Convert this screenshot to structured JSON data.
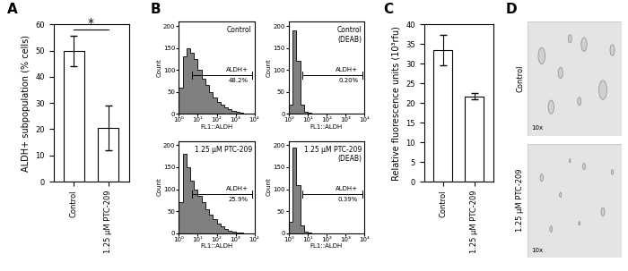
{
  "chart_data": [
    {
      "type": "bar",
      "panel_label": "A",
      "ylabel": "ALDH+ subpopulation (% cells)",
      "categories": [
        "Control",
        "1.25 µM PTC-209"
      ],
      "values": [
        49.8,
        20.4
      ],
      "errors": [
        5.8,
        8.6
      ],
      "color": "#ffffff",
      "ylim": [
        0,
        60
      ],
      "yticks": [
        0,
        10,
        20,
        30,
        40,
        50,
        60
      ],
      "significance": {
        "label": "*",
        "between": [
          0,
          1
        ]
      }
    },
    {
      "type": "histogram",
      "panel_label": "B",
      "title": "Control",
      "xlabel": "FL1::ALDH",
      "ylabel": "Count",
      "log": "x",
      "color": "#808080",
      "bins": [
        1,
        1.585,
        2.512,
        3.981,
        6.31,
        10,
        15.85,
        25.12,
        39.81,
        63.1,
        100,
        158.5,
        251.2,
        398.1,
        631,
        1000,
        1585,
        2512,
        3981,
        6310,
        10000
      ],
      "counts": [
        60,
        130,
        150,
        140,
        125,
        100,
        80,
        65,
        50,
        38,
        28,
        20,
        14,
        10,
        6,
        4,
        2,
        1,
        0,
        0
      ],
      "xlim": [
        1,
        10000
      ],
      "xticks": [
        {
          "value": 1,
          "label": "10⁰"
        },
        {
          "value": 10,
          "label": "10¹"
        },
        {
          "value": 100,
          "label": "10²"
        },
        {
          "value": 1000,
          "label": "10³"
        },
        {
          "value": 10000,
          "label": "10⁴"
        }
      ],
      "ylim": [
        0,
        210
      ],
      "yticks": [
        0,
        50,
        100,
        150,
        200
      ],
      "gate": {
        "label": "ALDH+",
        "range": [
          5,
          8000
        ],
        "value": 48.2,
        "value_label": "48.2%"
      }
    },
    {
      "type": "histogram",
      "title": "Control\n(DEAB)",
      "xlabel": "FL1::ALDH",
      "ylabel": "Count",
      "log": "x",
      "color": "#808080",
      "bins": [
        1,
        1.585,
        2.512,
        3.981,
        6.31,
        10,
        15.85,
        25.12,
        39.81,
        63.1,
        100,
        158.5,
        251.2,
        398.1,
        631,
        1000,
        1585,
        2512,
        3981,
        6310,
        10000
      ],
      "counts": [
        20,
        190,
        120,
        20,
        5,
        2,
        1,
        0,
        0,
        0,
        0,
        0,
        0,
        0,
        0,
        0,
        0,
        0,
        0,
        0
      ],
      "xlim": [
        1,
        10000
      ],
      "xticks": [
        {
          "value": 1,
          "label": "10⁰"
        },
        {
          "value": 10,
          "label": "10¹"
        },
        {
          "value": 100,
          "label": "10²"
        },
        {
          "value": 1000,
          "label": "10³"
        },
        {
          "value": 10000,
          "label": "10⁴"
        }
      ],
      "ylim": [
        0,
        210
      ],
      "yticks": [
        0,
        50,
        100,
        150,
        200
      ],
      "gate": {
        "label": "ALDH+",
        "range": [
          5,
          8000
        ],
        "value": 0.2,
        "value_label": "0.20%"
      }
    },
    {
      "type": "histogram",
      "title": "1.25 µM PTC-209",
      "xlabel": "FL1::ALDH",
      "ylabel": "Count",
      "log": "x",
      "color": "#808080",
      "bins": [
        1,
        1.585,
        2.512,
        3.981,
        6.31,
        10,
        15.85,
        25.12,
        39.81,
        63.1,
        100,
        158.5,
        251.2,
        398.1,
        631,
        1000,
        1585,
        2512,
        3981,
        6310,
        10000
      ],
      "counts": [
        70,
        180,
        150,
        120,
        100,
        85,
        70,
        55,
        42,
        32,
        22,
        15,
        10,
        6,
        4,
        2,
        1,
        0,
        0,
        0
      ],
      "xlim": [
        1,
        10000
      ],
      "xticks": [
        {
          "value": 1,
          "label": "10⁰"
        },
        {
          "value": 10,
          "label": "10¹"
        },
        {
          "value": 100,
          "label": "10²"
        },
        {
          "value": 1000,
          "label": "10³"
        },
        {
          "value": 10000,
          "label": "10⁴"
        }
      ],
      "ylim": [
        0,
        210
      ],
      "yticks": [
        0,
        50,
        100,
        150,
        200
      ],
      "gate": {
        "label": "ALDH+",
        "range": [
          5,
          8000
        ],
        "value": 25.9,
        "value_label": "25.9%"
      }
    },
    {
      "type": "histogram",
      "title": "1.25 µM PTC-209\n(DEAB)",
      "xlabel": "FL1::ALDH",
      "ylabel": "Count",
      "log": "x",
      "color": "#808080",
      "bins": [
        1,
        1.585,
        2.512,
        3.981,
        6.31,
        10,
        15.85,
        25.12,
        39.81,
        63.1,
        100,
        158.5,
        251.2,
        398.1,
        631,
        1000,
        1585,
        2512,
        3981,
        6310,
        10000
      ],
      "counts": [
        25,
        195,
        110,
        18,
        4,
        1,
        0,
        0,
        0,
        0,
        0,
        0,
        0,
        0,
        0,
        0,
        0,
        0,
        0,
        0
      ],
      "xlim": [
        1,
        10000
      ],
      "xticks": [
        {
          "value": 1,
          "label": "10⁰"
        },
        {
          "value": 10,
          "label": "10¹"
        },
        {
          "value": 100,
          "label": "10²"
        },
        {
          "value": 1000,
          "label": "10³"
        },
        {
          "value": 10000,
          "label": "10⁴"
        }
      ],
      "ylim": [
        0,
        210
      ],
      "yticks": [
        0,
        50,
        100,
        150,
        200
      ],
      "gate": {
        "label": "ALDH+",
        "range": [
          5,
          8000
        ],
        "value": 0.39,
        "value_label": "0.39%"
      }
    },
    {
      "type": "bar",
      "panel_label": "C",
      "ylabel": "Relative fluorescence units (10³rfu)",
      "categories": [
        "Control",
        "1.25 µM PTC-209"
      ],
      "values": [
        33.5,
        21.7
      ],
      "errors": [
        3.8,
        0.8
      ],
      "color": "#ffffff",
      "ylim": [
        0,
        40
      ],
      "yticks": [
        0,
        5,
        10,
        15,
        20,
        25,
        30,
        35,
        40
      ]
    },
    {
      "type": "image",
      "panel_label": "D",
      "panels": [
        {
          "label": "Control",
          "magnification": "10x"
        },
        {
          "label": "1.25 µM PTC-209",
          "magnification": "10x"
        }
      ]
    }
  ]
}
